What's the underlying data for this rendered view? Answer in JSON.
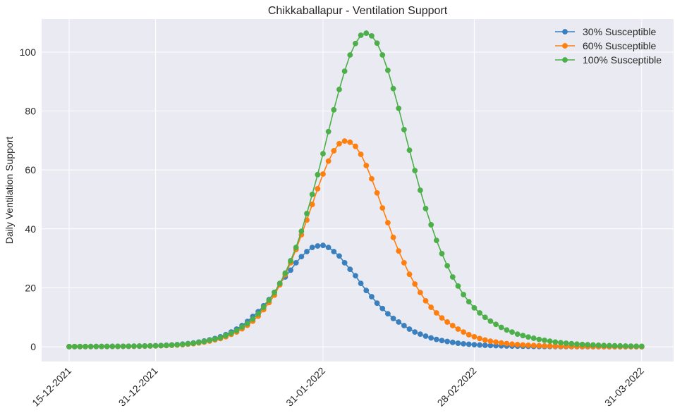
{
  "chart_data": {
    "type": "line",
    "title": "Chikkaballapur - Ventilation Support",
    "xlabel": "",
    "ylabel": "Daily Ventilation Support",
    "x_start": "15-12-2021",
    "x_end": "31-03-2022",
    "x_interval": "daily",
    "xlim_days": [
      -5.1,
      111.9
    ],
    "ylim": [
      -5,
      111.2
    ],
    "grid": true,
    "legend_position": "top-right",
    "x_ticks": [
      {
        "label": "15-12-2021",
        "day": 0
      },
      {
        "label": "31-12-2021",
        "day": 16
      },
      {
        "label": "31-01-2022",
        "day": 47
      },
      {
        "label": "28-02-2022",
        "day": 75
      },
      {
        "label": "31-03-2022",
        "day": 106
      }
    ],
    "y_ticks": [
      {
        "label": "0",
        "value": 0
      },
      {
        "label": "20",
        "value": 20
      },
      {
        "label": "40",
        "value": 40
      },
      {
        "label": "60",
        "value": 60
      },
      {
        "label": "80",
        "value": 80
      },
      {
        "label": "100",
        "value": 100
      }
    ],
    "series": [
      {
        "name": "30% Susceptible",
        "color": "#3a80bf",
        "values": [
          0.06,
          0.07,
          0.07,
          0.08,
          0.09,
          0.1,
          0.11,
          0.12,
          0.13,
          0.15,
          0.16,
          0.18,
          0.21,
          0.24,
          0.27,
          0.32,
          0.37,
          0.44,
          0.52,
          0.62,
          0.74,
          0.9,
          1.08,
          1.3,
          1.6,
          1.95,
          2.35,
          2.8,
          3.4,
          4.1,
          5.0,
          6.0,
          7.2,
          8.6,
          10.3,
          11.9,
          13.9,
          16.0,
          18.5,
          21.5,
          23.7,
          26,
          28.5,
          30.6,
          32.3,
          33.7,
          34.2,
          34.4,
          33.7,
          32.3,
          30.8,
          28.5,
          26.3,
          24.1,
          21.5,
          19.1,
          17,
          14.8,
          13,
          11.2,
          9.6,
          8.4,
          7.2,
          6,
          5,
          4.3,
          3.6,
          3.0,
          2.5,
          2.1,
          1.8,
          1.5,
          1.2,
          1.0,
          0.85,
          0.7,
          0.6,
          0.5,
          0.43,
          0.37,
          0.31,
          0.27,
          0.23,
          0.2,
          0.17,
          0.14,
          0.12,
          0.1,
          0.09,
          0.08,
          0.07,
          0.06,
          0.05,
          0.04,
          0.04,
          0.03,
          0.03,
          0.03,
          0.02,
          0.02,
          0.02,
          0.02,
          0.01,
          0.01,
          0.01,
          0.01,
          0.01
        ]
      },
      {
        "name": "60% Susceptible",
        "color": "#ff7f0e",
        "values": [
          0.04,
          0.05,
          0.05,
          0.06,
          0.07,
          0.08,
          0.09,
          0.1,
          0.11,
          0.12,
          0.13,
          0.15,
          0.17,
          0.19,
          0.22,
          0.26,
          0.3,
          0.35,
          0.42,
          0.5,
          0.6,
          0.72,
          0.88,
          1.05,
          1.3,
          1.6,
          1.95,
          2.35,
          2.8,
          3.4,
          4.2,
          5.0,
          6.1,
          7.3,
          8.7,
          10.4,
          12.6,
          15.0,
          17.5,
          21.0,
          24.5,
          28.5,
          33,
          38,
          43,
          48.3,
          53.6,
          58.6,
          63,
          66.5,
          68.9,
          69.8,
          69.4,
          68,
          65.3,
          61.5,
          57,
          52.2,
          47.1,
          42.1,
          37.1,
          32.5,
          28.5,
          24.6,
          21.3,
          18.4,
          15.6,
          13.4,
          11.5,
          9.8,
          8.4,
          7.2,
          6.0,
          5.0,
          4.1,
          3.4,
          2.8,
          2.3,
          1.9,
          1.6,
          1.3,
          1.1,
          0.9,
          0.75,
          0.62,
          0.52,
          0.43,
          0.36,
          0.3,
          0.25,
          0.2,
          0.17,
          0.14,
          0.12,
          0.1,
          0.08,
          0.07,
          0.06,
          0.05,
          0.04,
          0.03,
          0.03,
          0.03,
          0.02,
          0.02,
          0.02,
          0.01
        ]
      },
      {
        "name": "100% Susceptible",
        "color": "#4daf4a",
        "values": [
          0.05,
          0.06,
          0.06,
          0.07,
          0.08,
          0.09,
          0.1,
          0.11,
          0.12,
          0.14,
          0.15,
          0.17,
          0.19,
          0.22,
          0.25,
          0.29,
          0.34,
          0.4,
          0.48,
          0.57,
          0.68,
          0.82,
          1.0,
          1.2,
          1.5,
          1.8,
          2.2,
          2.6,
          3.1,
          3.8,
          4.6,
          5.5,
          6.7,
          7.9,
          9.4,
          11.2,
          13.4,
          15.8,
          18.4,
          21.5,
          25,
          29.2,
          33.7,
          39.2,
          45.2,
          51.7,
          58.4,
          65.5,
          73,
          80.4,
          87.3,
          93.5,
          99,
          102.9,
          105.7,
          106.4,
          105.5,
          103,
          99,
          93.8,
          87.6,
          80.9,
          73.7,
          66.7,
          59.8,
          53.1,
          46.9,
          41.4,
          36.1,
          31.6,
          27.5,
          23.7,
          20.6,
          17.7,
          15.3,
          13.2,
          11.5,
          10,
          8.7,
          7.6,
          6.6,
          5.7,
          5.0,
          4.3,
          3.8,
          3.3,
          2.9,
          2.5,
          2.2,
          1.9,
          1.6,
          1.4,
          1.2,
          1.05,
          0.9,
          0.8,
          0.7,
          0.6,
          0.52,
          0.45,
          0.39,
          0.34,
          0.3,
          0.26,
          0.22,
          0.19,
          0.17
        ]
      }
    ]
  }
}
